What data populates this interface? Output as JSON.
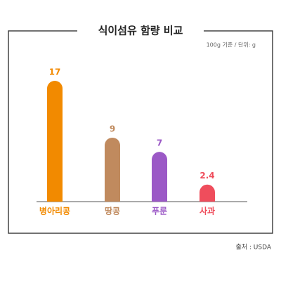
{
  "chart_data": {
    "type": "bar",
    "title": "식이섬유 함량 비교",
    "subtitle": "100g 기준 / 단위: g",
    "source": "출처 : USDA",
    "categories": [
      "병아리콩",
      "땅콩",
      "푸룬",
      "사과"
    ],
    "values": [
      17,
      9,
      7,
      2.4
    ],
    "colors": [
      "#f28a00",
      "#c08a5e",
      "#9b59c6",
      "#ef4d5c"
    ]
  }
}
